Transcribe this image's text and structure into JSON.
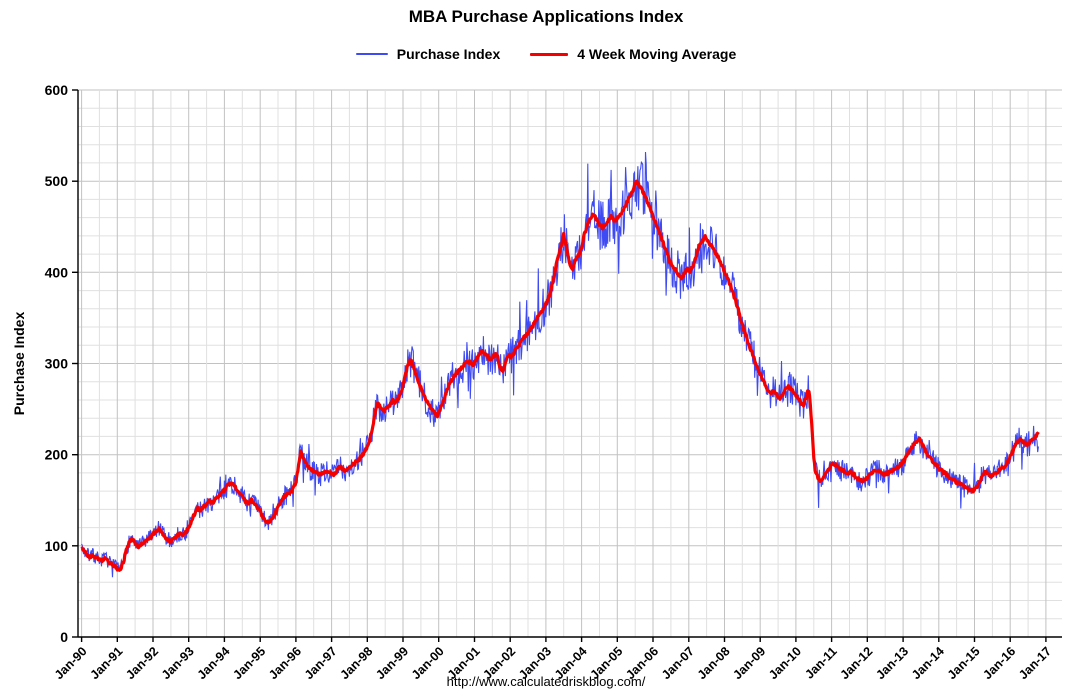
{
  "title": "MBA Purchase Applications Index",
  "legend": {
    "items": [
      {
        "label": "Purchase Index"
      },
      {
        "label": "4 Week Moving Average"
      }
    ]
  },
  "footer": "http://www.calculatedriskblog.com/",
  "axes": {
    "y": {
      "title": "Purchase Index",
      "min": 0,
      "max": 600,
      "major_step": 100,
      "minor_step": 20,
      "tick_labels": [
        "0",
        "100",
        "200",
        "300",
        "400",
        "500",
        "600"
      ]
    },
    "x": {
      "tick_labels": [
        "Jan-90",
        "Jan-91",
        "Jan-92",
        "Jan-93",
        "Jan-94",
        "Jan-95",
        "Jan-96",
        "Jan-97",
        "Jan-98",
        "Jan-99",
        "Jan-00",
        "Jan-01",
        "Jan-02",
        "Jan-03",
        "Jan-04",
        "Jan-05",
        "Jan-06",
        "Jan-07",
        "Jan-08",
        "Jan-09",
        "Jan-10",
        "Jan-11",
        "Jan-12",
        "Jan-13",
        "Jan-14",
        "Jan-15",
        "Jan-16",
        "Jan-17"
      ]
    }
  },
  "chart_data": {
    "type": "line",
    "title": "MBA Purchase Applications Index",
    "xlabel": "",
    "ylabel": "Purchase Index",
    "x_range": [
      1990,
      2017
    ],
    "ylim": [
      0,
      600
    ],
    "grid": true,
    "legend_position": "top-center",
    "series": [
      {
        "name": "Purchase Index",
        "color": "#3e4af2",
        "width": 1.1,
        "derived": "ma_plus_weekly_noise"
      },
      {
        "name": "4 Week Moving Average",
        "color": "#f40000",
        "width": 3.2
      }
    ],
    "noise_seed": 7,
    "noise": {
      "base": 3,
      "rel": 0.055,
      "spike_prob": 0.07,
      "spike_rel": 0.13,
      "ma_jitter": 1.8,
      "clamp_low": 50,
      "clamp_high": 532
    },
    "ma_points": [
      [
        1990.0,
        98
      ],
      [
        1990.08,
        94
      ],
      [
        1990.17,
        90
      ],
      [
        1990.25,
        88
      ],
      [
        1990.33,
        90
      ],
      [
        1990.42,
        87
      ],
      [
        1990.5,
        86
      ],
      [
        1990.58,
        84
      ],
      [
        1990.67,
        86
      ],
      [
        1990.75,
        83
      ],
      [
        1990.83,
        80
      ],
      [
        1990.92,
        78
      ],
      [
        1991.0,
        75
      ],
      [
        1991.08,
        74
      ],
      [
        1991.17,
        82
      ],
      [
        1991.25,
        95
      ],
      [
        1991.33,
        105
      ],
      [
        1991.42,
        108
      ],
      [
        1991.5,
        102
      ],
      [
        1991.58,
        99
      ],
      [
        1991.67,
        101
      ],
      [
        1991.75,
        104
      ],
      [
        1991.83,
        106
      ],
      [
        1991.92,
        109
      ],
      [
        1992.0,
        113
      ],
      [
        1992.08,
        116
      ],
      [
        1992.17,
        119
      ],
      [
        1992.25,
        115
      ],
      [
        1992.33,
        110
      ],
      [
        1992.42,
        107
      ],
      [
        1992.5,
        105
      ],
      [
        1992.58,
        108
      ],
      [
        1992.67,
        111
      ],
      [
        1992.75,
        113
      ],
      [
        1992.83,
        112
      ],
      [
        1992.92,
        115
      ],
      [
        1993.0,
        120
      ],
      [
        1993.08,
        128
      ],
      [
        1993.17,
        136
      ],
      [
        1993.25,
        141
      ],
      [
        1993.33,
        139
      ],
      [
        1993.42,
        143
      ],
      [
        1993.5,
        146
      ],
      [
        1993.58,
        149
      ],
      [
        1993.67,
        147
      ],
      [
        1993.75,
        151
      ],
      [
        1993.83,
        154
      ],
      [
        1993.92,
        158
      ],
      [
        1994.0,
        161
      ],
      [
        1994.08,
        166
      ],
      [
        1994.17,
        169
      ],
      [
        1994.25,
        167
      ],
      [
        1994.33,
        163
      ],
      [
        1994.42,
        159
      ],
      [
        1994.5,
        154
      ],
      [
        1994.58,
        149
      ],
      [
        1994.67,
        147
      ],
      [
        1994.75,
        151
      ],
      [
        1994.83,
        146
      ],
      [
        1994.92,
        142
      ],
      [
        1995.0,
        138
      ],
      [
        1995.08,
        131
      ],
      [
        1995.17,
        127
      ],
      [
        1995.25,
        125
      ],
      [
        1995.33,
        130
      ],
      [
        1995.42,
        136
      ],
      [
        1995.5,
        143
      ],
      [
        1995.58,
        149
      ],
      [
        1995.67,
        154
      ],
      [
        1995.75,
        157
      ],
      [
        1995.83,
        159
      ],
      [
        1995.92,
        162
      ],
      [
        1996.0,
        170
      ],
      [
        1996.08,
        188
      ],
      [
        1996.13,
        203
      ],
      [
        1996.21,
        196
      ],
      [
        1996.29,
        189
      ],
      [
        1996.38,
        185
      ],
      [
        1996.46,
        183
      ],
      [
        1996.54,
        181
      ],
      [
        1996.63,
        179
      ],
      [
        1996.71,
        178
      ],
      [
        1996.79,
        181
      ],
      [
        1996.88,
        183
      ],
      [
        1996.96,
        180
      ],
      [
        1997.04,
        178
      ],
      [
        1997.13,
        181
      ],
      [
        1997.21,
        187
      ],
      [
        1997.29,
        185
      ],
      [
        1997.38,
        183
      ],
      [
        1997.46,
        185
      ],
      [
        1997.54,
        187
      ],
      [
        1997.63,
        190
      ],
      [
        1997.71,
        193
      ],
      [
        1997.79,
        196
      ],
      [
        1997.88,
        200
      ],
      [
        1997.96,
        205
      ],
      [
        1998.04,
        213
      ],
      [
        1998.13,
        227
      ],
      [
        1998.21,
        244
      ],
      [
        1998.29,
        256
      ],
      [
        1998.38,
        251
      ],
      [
        1998.46,
        248
      ],
      [
        1998.54,
        251
      ],
      [
        1998.63,
        254
      ],
      [
        1998.71,
        260
      ],
      [
        1998.79,
        257
      ],
      [
        1998.88,
        263
      ],
      [
        1998.96,
        270
      ],
      [
        1999.04,
        284
      ],
      [
        1999.13,
        297
      ],
      [
        1999.21,
        304
      ],
      [
        1999.29,
        296
      ],
      [
        1999.38,
        287
      ],
      [
        1999.46,
        277
      ],
      [
        1999.54,
        269
      ],
      [
        1999.63,
        261
      ],
      [
        1999.71,
        255
      ],
      [
        1999.79,
        250
      ],
      [
        1999.88,
        246
      ],
      [
        1999.96,
        243
      ],
      [
        2000.04,
        250
      ],
      [
        2000.13,
        258
      ],
      [
        2000.21,
        268
      ],
      [
        2000.29,
        277
      ],
      [
        2000.38,
        283
      ],
      [
        2000.46,
        288
      ],
      [
        2000.54,
        291
      ],
      [
        2000.63,
        295
      ],
      [
        2000.71,
        299
      ],
      [
        2000.79,
        303
      ],
      [
        2000.88,
        301
      ],
      [
        2000.96,
        299
      ],
      [
        2001.04,
        303
      ],
      [
        2001.13,
        309
      ],
      [
        2001.21,
        314
      ],
      [
        2001.29,
        311
      ],
      [
        2001.38,
        307
      ],
      [
        2001.46,
        304
      ],
      [
        2001.54,
        308
      ],
      [
        2001.63,
        311
      ],
      [
        2001.71,
        296
      ],
      [
        2001.79,
        291
      ],
      [
        2001.88,
        302
      ],
      [
        2001.96,
        309
      ],
      [
        2002.04,
        307
      ],
      [
        2002.13,
        313
      ],
      [
        2002.21,
        318
      ],
      [
        2002.29,
        323
      ],
      [
        2002.38,
        328
      ],
      [
        2002.46,
        332
      ],
      [
        2002.54,
        336
      ],
      [
        2002.63,
        341
      ],
      [
        2002.71,
        346
      ],
      [
        2002.79,
        352
      ],
      [
        2002.88,
        357
      ],
      [
        2002.96,
        362
      ],
      [
        2003.04,
        368
      ],
      [
        2003.13,
        379
      ],
      [
        2003.21,
        392
      ],
      [
        2003.29,
        408
      ],
      [
        2003.38,
        422
      ],
      [
        2003.46,
        434
      ],
      [
        2003.5,
        441
      ],
      [
        2003.58,
        428
      ],
      [
        2003.67,
        409
      ],
      [
        2003.75,
        404
      ],
      [
        2003.83,
        413
      ],
      [
        2003.92,
        419
      ],
      [
        2004.0,
        428
      ],
      [
        2004.08,
        442
      ],
      [
        2004.17,
        452
      ],
      [
        2004.25,
        459
      ],
      [
        2004.33,
        464
      ],
      [
        2004.42,
        458
      ],
      [
        2004.5,
        452
      ],
      [
        2004.58,
        449
      ],
      [
        2004.67,
        453
      ],
      [
        2004.75,
        458
      ],
      [
        2004.83,
        461
      ],
      [
        2004.92,
        457
      ],
      [
        2005.0,
        459
      ],
      [
        2005.08,
        463
      ],
      [
        2005.17,
        468
      ],
      [
        2005.25,
        475
      ],
      [
        2005.33,
        482
      ],
      [
        2005.42,
        489
      ],
      [
        2005.5,
        496
      ],
      [
        2005.54,
        500
      ],
      [
        2005.63,
        494
      ],
      [
        2005.71,
        489
      ],
      [
        2005.79,
        483
      ],
      [
        2005.88,
        474
      ],
      [
        2005.96,
        466
      ],
      [
        2006.04,
        458
      ],
      [
        2006.13,
        449
      ],
      [
        2006.21,
        441
      ],
      [
        2006.29,
        432
      ],
      [
        2006.38,
        422
      ],
      [
        2006.46,
        413
      ],
      [
        2006.54,
        408
      ],
      [
        2006.63,
        403
      ],
      [
        2006.71,
        398
      ],
      [
        2006.79,
        393
      ],
      [
        2006.88,
        399
      ],
      [
        2006.96,
        404
      ],
      [
        2007.04,
        400
      ],
      [
        2007.13,
        409
      ],
      [
        2007.21,
        418
      ],
      [
        2007.29,
        428
      ],
      [
        2007.38,
        434
      ],
      [
        2007.46,
        439
      ],
      [
        2007.54,
        434
      ],
      [
        2007.63,
        429
      ],
      [
        2007.71,
        424
      ],
      [
        2007.79,
        419
      ],
      [
        2007.88,
        412
      ],
      [
        2007.96,
        404
      ],
      [
        2008.04,
        397
      ],
      [
        2008.13,
        389
      ],
      [
        2008.21,
        381
      ],
      [
        2008.29,
        371
      ],
      [
        2008.38,
        360
      ],
      [
        2008.46,
        347
      ],
      [
        2008.54,
        337
      ],
      [
        2008.63,
        327
      ],
      [
        2008.71,
        318
      ],
      [
        2008.79,
        310
      ],
      [
        2008.88,
        300
      ],
      [
        2008.96,
        292
      ],
      [
        2009.04,
        285
      ],
      [
        2009.13,
        278
      ],
      [
        2009.21,
        271
      ],
      [
        2009.29,
        266
      ],
      [
        2009.38,
        270
      ],
      [
        2009.46,
        266
      ],
      [
        2009.54,
        261
      ],
      [
        2009.63,
        266
      ],
      [
        2009.71,
        272
      ],
      [
        2009.79,
        275
      ],
      [
        2009.88,
        271
      ],
      [
        2009.96,
        267
      ],
      [
        2010.04,
        263
      ],
      [
        2010.13,
        258
      ],
      [
        2010.21,
        254
      ],
      [
        2010.29,
        263
      ],
      [
        2010.33,
        272
      ],
      [
        2010.38,
        268
      ],
      [
        2010.42,
        246
      ],
      [
        2010.46,
        222
      ],
      [
        2010.5,
        196
      ],
      [
        2010.54,
        182
      ],
      [
        2010.63,
        174
      ],
      [
        2010.71,
        171
      ],
      [
        2010.79,
        176
      ],
      [
        2010.88,
        182
      ],
      [
        2010.96,
        187
      ],
      [
        2011.04,
        190
      ],
      [
        2011.13,
        188
      ],
      [
        2011.21,
        185
      ],
      [
        2011.29,
        183
      ],
      [
        2011.38,
        181
      ],
      [
        2011.46,
        179
      ],
      [
        2011.54,
        181
      ],
      [
        2011.63,
        178
      ],
      [
        2011.71,
        175
      ],
      [
        2011.79,
        172
      ],
      [
        2011.88,
        170
      ],
      [
        2011.96,
        173
      ],
      [
        2012.04,
        176
      ],
      [
        2012.13,
        180
      ],
      [
        2012.21,
        184
      ],
      [
        2012.29,
        182
      ],
      [
        2012.38,
        180
      ],
      [
        2012.46,
        178
      ],
      [
        2012.54,
        179
      ],
      [
        2012.63,
        181
      ],
      [
        2012.71,
        183
      ],
      [
        2012.79,
        185
      ],
      [
        2012.88,
        187
      ],
      [
        2012.96,
        190
      ],
      [
        2013.04,
        194
      ],
      [
        2013.13,
        200
      ],
      [
        2013.21,
        206
      ],
      [
        2013.29,
        211
      ],
      [
        2013.38,
        215
      ],
      [
        2013.46,
        217
      ],
      [
        2013.54,
        211
      ],
      [
        2013.63,
        204
      ],
      [
        2013.71,
        199
      ],
      [
        2013.79,
        195
      ],
      [
        2013.88,
        191
      ],
      [
        2013.96,
        187
      ],
      [
        2014.04,
        184
      ],
      [
        2014.13,
        181
      ],
      [
        2014.21,
        178
      ],
      [
        2014.29,
        175
      ],
      [
        2014.38,
        173
      ],
      [
        2014.46,
        171
      ],
      [
        2014.54,
        169
      ],
      [
        2014.63,
        167
      ],
      [
        2014.71,
        165
      ],
      [
        2014.79,
        163
      ],
      [
        2014.88,
        161
      ],
      [
        2014.96,
        160
      ],
      [
        2015.04,
        163
      ],
      [
        2015.13,
        169
      ],
      [
        2015.21,
        176
      ],
      [
        2015.29,
        181
      ],
      [
        2015.38,
        179
      ],
      [
        2015.46,
        177
      ],
      [
        2015.54,
        179
      ],
      [
        2015.63,
        181
      ],
      [
        2015.71,
        183
      ],
      [
        2015.79,
        186
      ],
      [
        2015.88,
        189
      ],
      [
        2015.96,
        194
      ],
      [
        2016.04,
        201
      ],
      [
        2016.13,
        209
      ],
      [
        2016.21,
        214
      ],
      [
        2016.29,
        217
      ],
      [
        2016.38,
        214
      ],
      [
        2016.46,
        211
      ],
      [
        2016.54,
        213
      ],
      [
        2016.63,
        216
      ],
      [
        2016.71,
        220
      ],
      [
        2016.79,
        224
      ]
    ]
  }
}
